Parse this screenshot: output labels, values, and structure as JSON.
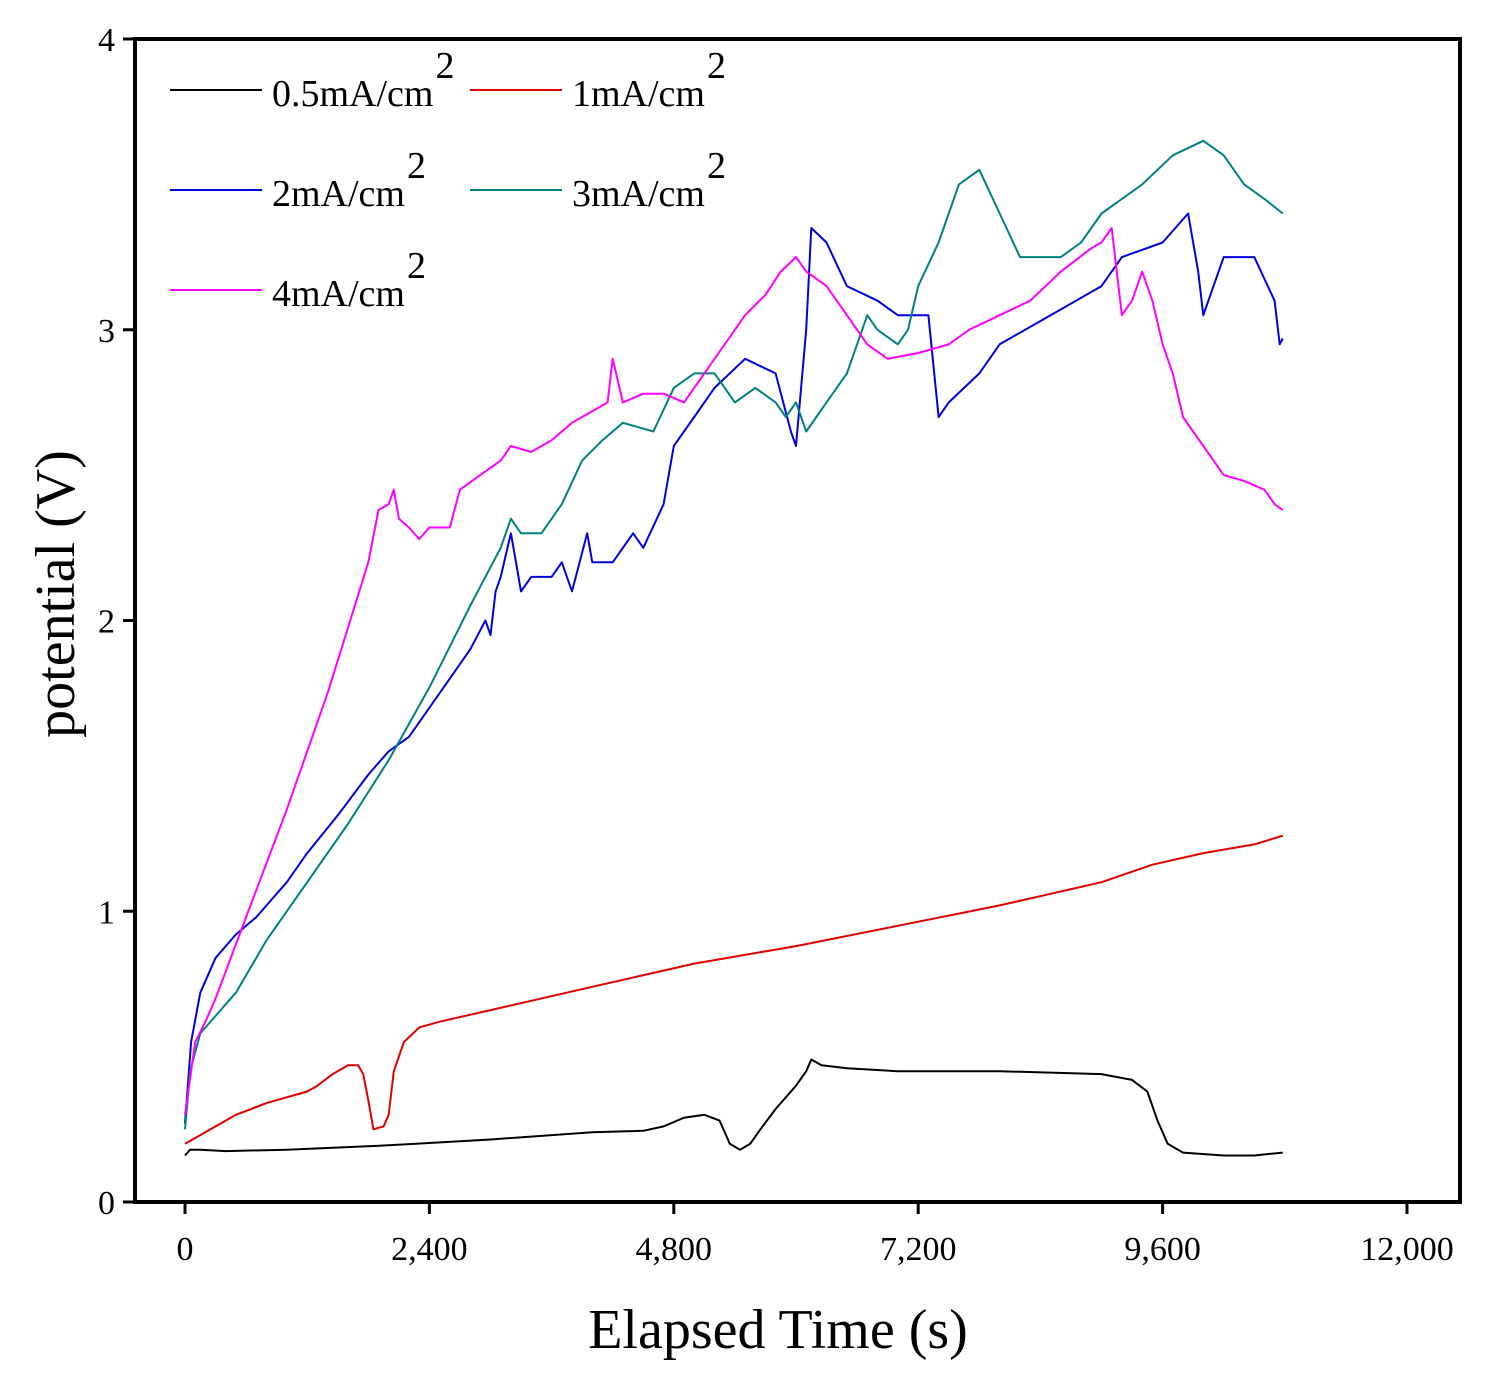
{
  "chart_data": {
    "type": "line",
    "xlabel": "Elapsed Time (s)",
    "ylabel": "potential (V)",
    "xlim": [
      -500,
      12500
    ],
    "ylim": [
      0,
      4
    ],
    "xticks": [
      0,
      2400,
      4800,
      7200,
      9600,
      12000
    ],
    "xtick_labels": [
      "0",
      "2,400",
      "4,800",
      "7,200",
      "9,600",
      "12,000"
    ],
    "yticks": [
      0,
      1,
      2,
      3,
      4
    ],
    "ytick_labels": [
      "0",
      "1",
      "2",
      "3",
      "4"
    ],
    "legend_position": "top-left",
    "series": [
      {
        "id": "s05",
        "name": "0.5mA/cm",
        "sup": "2",
        "color": "#000000",
        "points": [
          [
            0,
            0.16
          ],
          [
            50,
            0.18
          ],
          [
            150,
            0.18
          ],
          [
            400,
            0.175
          ],
          [
            1000,
            0.18
          ],
          [
            2000,
            0.195
          ],
          [
            3000,
            0.215
          ],
          [
            4000,
            0.24
          ],
          [
            4500,
            0.245
          ],
          [
            4700,
            0.26
          ],
          [
            4900,
            0.29
          ],
          [
            5100,
            0.3
          ],
          [
            5250,
            0.28
          ],
          [
            5350,
            0.2
          ],
          [
            5450,
            0.18
          ],
          [
            5550,
            0.2
          ],
          [
            5650,
            0.25
          ],
          [
            5800,
            0.32
          ],
          [
            6000,
            0.4
          ],
          [
            6100,
            0.45
          ],
          [
            6150,
            0.49
          ],
          [
            6250,
            0.47
          ],
          [
            6500,
            0.46
          ],
          [
            7000,
            0.45
          ],
          [
            8000,
            0.45
          ],
          [
            9000,
            0.44
          ],
          [
            9300,
            0.42
          ],
          [
            9450,
            0.38
          ],
          [
            9550,
            0.28
          ],
          [
            9650,
            0.2
          ],
          [
            9800,
            0.17
          ],
          [
            10200,
            0.16
          ],
          [
            10500,
            0.16
          ],
          [
            10780,
            0.17
          ]
        ]
      },
      {
        "id": "s1",
        "name": "1mA/cm",
        "sup": "2",
        "color": "#e00000",
        "points": [
          [
            0,
            0.2
          ],
          [
            100,
            0.22
          ],
          [
            300,
            0.26
          ],
          [
            500,
            0.3
          ],
          [
            800,
            0.34
          ],
          [
            1200,
            0.38
          ],
          [
            1300,
            0.4
          ],
          [
            1450,
            0.44
          ],
          [
            1600,
            0.47
          ],
          [
            1700,
            0.47
          ],
          [
            1750,
            0.44
          ],
          [
            1800,
            0.35
          ],
          [
            1850,
            0.25
          ],
          [
            1950,
            0.26
          ],
          [
            2000,
            0.3
          ],
          [
            2050,
            0.45
          ],
          [
            2150,
            0.55
          ],
          [
            2300,
            0.6
          ],
          [
            2500,
            0.62
          ],
          [
            3000,
            0.66
          ],
          [
            4000,
            0.74
          ],
          [
            5000,
            0.82
          ],
          [
            6000,
            0.88
          ],
          [
            7000,
            0.95
          ],
          [
            8000,
            1.02
          ],
          [
            8500,
            1.06
          ],
          [
            9000,
            1.1
          ],
          [
            9500,
            1.16
          ],
          [
            10000,
            1.2
          ],
          [
            10500,
            1.23
          ],
          [
            10780,
            1.26
          ]
        ]
      },
      {
        "id": "s2",
        "name": "2mA/cm",
        "sup": "2",
        "color": "#0000e0",
        "points": [
          [
            0,
            0.27
          ],
          [
            60,
            0.55
          ],
          [
            150,
            0.72
          ],
          [
            300,
            0.84
          ],
          [
            500,
            0.92
          ],
          [
            700,
            0.98
          ],
          [
            1000,
            1.1
          ],
          [
            1200,
            1.2
          ],
          [
            1500,
            1.33
          ],
          [
            1800,
            1.47
          ],
          [
            2000,
            1.55
          ],
          [
            2200,
            1.6
          ],
          [
            2500,
            1.75
          ],
          [
            2800,
            1.9
          ],
          [
            2950,
            2.0
          ],
          [
            3000,
            1.95
          ],
          [
            3050,
            2.1
          ],
          [
            3100,
            2.15
          ],
          [
            3200,
            2.3
          ],
          [
            3250,
            2.2
          ],
          [
            3300,
            2.1
          ],
          [
            3400,
            2.15
          ],
          [
            3600,
            2.15
          ],
          [
            3700,
            2.2
          ],
          [
            3800,
            2.1
          ],
          [
            3950,
            2.3
          ],
          [
            4000,
            2.2
          ],
          [
            4200,
            2.2
          ],
          [
            4400,
            2.3
          ],
          [
            4500,
            2.25
          ],
          [
            4700,
            2.4
          ],
          [
            4800,
            2.6
          ],
          [
            5000,
            2.7
          ],
          [
            5200,
            2.8
          ],
          [
            5500,
            2.9
          ],
          [
            5800,
            2.85
          ],
          [
            5950,
            2.65
          ],
          [
            6000,
            2.6
          ],
          [
            6100,
            3.0
          ],
          [
            6150,
            3.35
          ],
          [
            6300,
            3.3
          ],
          [
            6500,
            3.15
          ],
          [
            6800,
            3.1
          ],
          [
            7000,
            3.05
          ],
          [
            7300,
            3.05
          ],
          [
            7400,
            2.7
          ],
          [
            7500,
            2.75
          ],
          [
            7800,
            2.85
          ],
          [
            8000,
            2.95
          ],
          [
            8500,
            3.05
          ],
          [
            9000,
            3.15
          ],
          [
            9200,
            3.25
          ],
          [
            9600,
            3.3
          ],
          [
            9850,
            3.4
          ],
          [
            9950,
            3.2
          ],
          [
            10000,
            3.05
          ],
          [
            10200,
            3.25
          ],
          [
            10500,
            3.25
          ],
          [
            10700,
            3.1
          ],
          [
            10750,
            2.95
          ],
          [
            10780,
            2.97
          ]
        ]
      },
      {
        "id": "s3",
        "name": "3mA/cm",
        "sup": "2",
        "color": "#00807f",
        "points": [
          [
            0,
            0.25
          ],
          [
            50,
            0.45
          ],
          [
            150,
            0.58
          ],
          [
            300,
            0.64
          ],
          [
            500,
            0.72
          ],
          [
            800,
            0.9
          ],
          [
            1200,
            1.1
          ],
          [
            1600,
            1.3
          ],
          [
            2000,
            1.52
          ],
          [
            2400,
            1.77
          ],
          [
            2800,
            2.05
          ],
          [
            3100,
            2.25
          ],
          [
            3200,
            2.35
          ],
          [
            3300,
            2.3
          ],
          [
            3500,
            2.3
          ],
          [
            3700,
            2.4
          ],
          [
            3900,
            2.55
          ],
          [
            4100,
            2.62
          ],
          [
            4300,
            2.68
          ],
          [
            4600,
            2.65
          ],
          [
            4800,
            2.8
          ],
          [
            5000,
            2.85
          ],
          [
            5200,
            2.85
          ],
          [
            5400,
            2.75
          ],
          [
            5600,
            2.8
          ],
          [
            5800,
            2.75
          ],
          [
            5900,
            2.7
          ],
          [
            6000,
            2.75
          ],
          [
            6100,
            2.65
          ],
          [
            6300,
            2.75
          ],
          [
            6500,
            2.85
          ],
          [
            6600,
            2.95
          ],
          [
            6700,
            3.05
          ],
          [
            6800,
            3.0
          ],
          [
            7000,
            2.95
          ],
          [
            7100,
            3.0
          ],
          [
            7200,
            3.15
          ],
          [
            7400,
            3.3
          ],
          [
            7600,
            3.5
          ],
          [
            7800,
            3.55
          ],
          [
            8000,
            3.4
          ],
          [
            8200,
            3.25
          ],
          [
            8600,
            3.25
          ],
          [
            8800,
            3.3
          ],
          [
            9000,
            3.4
          ],
          [
            9200,
            3.45
          ],
          [
            9400,
            3.5
          ],
          [
            9700,
            3.6
          ],
          [
            10000,
            3.65
          ],
          [
            10200,
            3.6
          ],
          [
            10400,
            3.5
          ],
          [
            10600,
            3.45
          ],
          [
            10780,
            3.4
          ]
        ]
      },
      {
        "id": "s4",
        "name": "4mA/cm",
        "sup": "2",
        "color": "#ff00ff",
        "points": [
          [
            0,
            0.3
          ],
          [
            100,
            0.55
          ],
          [
            200,
            0.62
          ],
          [
            300,
            0.7
          ],
          [
            600,
            0.98
          ],
          [
            1000,
            1.35
          ],
          [
            1400,
            1.75
          ],
          [
            1800,
            2.2
          ],
          [
            1900,
            2.38
          ],
          [
            2000,
            2.4
          ],
          [
            2050,
            2.45
          ],
          [
            2100,
            2.35
          ],
          [
            2200,
            2.32
          ],
          [
            2300,
            2.28
          ],
          [
            2400,
            2.32
          ],
          [
            2600,
            2.32
          ],
          [
            2700,
            2.45
          ],
          [
            2900,
            2.5
          ],
          [
            3100,
            2.55
          ],
          [
            3200,
            2.6
          ],
          [
            3400,
            2.58
          ],
          [
            3600,
            2.62
          ],
          [
            3800,
            2.68
          ],
          [
            4000,
            2.72
          ],
          [
            4150,
            2.75
          ],
          [
            4200,
            2.9
          ],
          [
            4300,
            2.75
          ],
          [
            4500,
            2.78
          ],
          [
            4700,
            2.78
          ],
          [
            4900,
            2.75
          ],
          [
            5100,
            2.85
          ],
          [
            5300,
            2.95
          ],
          [
            5500,
            3.05
          ],
          [
            5700,
            3.12
          ],
          [
            5850,
            3.2
          ],
          [
            6000,
            3.25
          ],
          [
            6100,
            3.2
          ],
          [
            6300,
            3.15
          ],
          [
            6500,
            3.05
          ],
          [
            6700,
            2.95
          ],
          [
            6900,
            2.9
          ],
          [
            7200,
            2.92
          ],
          [
            7500,
            2.95
          ],
          [
            7700,
            3.0
          ],
          [
            8000,
            3.05
          ],
          [
            8300,
            3.1
          ],
          [
            8600,
            3.2
          ],
          [
            8900,
            3.28
          ],
          [
            9000,
            3.3
          ],
          [
            9100,
            3.35
          ],
          [
            9150,
            3.2
          ],
          [
            9200,
            3.05
          ],
          [
            9300,
            3.1
          ],
          [
            9400,
            3.2
          ],
          [
            9500,
            3.1
          ],
          [
            9600,
            2.95
          ],
          [
            9700,
            2.85
          ],
          [
            9800,
            2.7
          ],
          [
            10000,
            2.6
          ],
          [
            10200,
            2.5
          ],
          [
            10400,
            2.48
          ],
          [
            10600,
            2.45
          ],
          [
            10700,
            2.4
          ],
          [
            10780,
            2.38
          ]
        ]
      }
    ]
  }
}
